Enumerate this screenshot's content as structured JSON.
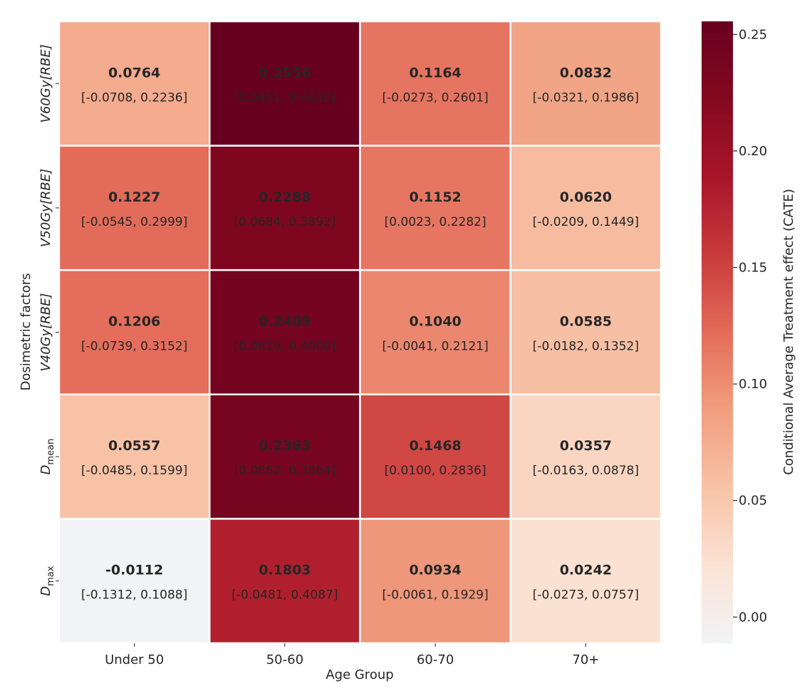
{
  "chart_data": {
    "type": "heatmap",
    "title": "",
    "xlabel": "Age Group",
    "ylabel": "Dosimetric factors",
    "colorbar_label": "Conditional Average Treatment effect (CATE)",
    "x_categories": [
      "Under 50",
      "50-60",
      "60-70",
      "70+"
    ],
    "y_categories": [
      {
        "base": "V60Gy[RBE]",
        "sub": ""
      },
      {
        "base": "V50Gy[RBE]",
        "sub": ""
      },
      {
        "base": "V40Gy[RBE]",
        "sub": ""
      },
      {
        "base": "D",
        "sub": "mean"
      },
      {
        "base": "D",
        "sub": "max"
      }
    ],
    "values": [
      [
        0.0764,
        0.2556,
        0.1164,
        0.0832
      ],
      [
        0.1227,
        0.2288,
        0.1152,
        0.062
      ],
      [
        0.1206,
        0.2409,
        0.104,
        0.0585
      ],
      [
        0.0557,
        0.2363,
        0.1468,
        0.0357
      ],
      [
        -0.0112,
        0.1803,
        0.0934,
        0.0242
      ]
    ],
    "value_labels": [
      [
        "0.0764",
        "0.2556",
        "0.1164",
        "0.0832"
      ],
      [
        "0.1227",
        "0.2288",
        "0.1152",
        "0.0620"
      ],
      [
        "0.1206",
        "0.2409",
        "0.1040",
        "0.0585"
      ],
      [
        "0.0557",
        "0.2363",
        "0.1468",
        "0.0357"
      ],
      [
        "-0.0112",
        "0.1803",
        "0.0934",
        "0.0242"
      ]
    ],
    "ci_labels": [
      [
        "[-0.0708, 0.2236]",
        "[0.0491, 0.4620]",
        "[-0.0273, 0.2601]",
        "[-0.0321, 0.1986]"
      ],
      [
        "[-0.0545, 0.2999]",
        "[0.0684, 0.3892]",
        "[0.0023, 0.2282]",
        "[-0.0209, 0.1449]"
      ],
      [
        "[-0.0739, 0.3152]",
        "[0.0819, 0.4000]",
        "[-0.0041, 0.2121]",
        "[-0.0182, 0.1352]"
      ],
      [
        "[-0.0485, 0.1599]",
        "[0.0862, 0.3864]",
        "[0.0100, 0.2836]",
        "[-0.0163, 0.0878]"
      ],
      [
        "[-0.1312, 0.1088]",
        "[-0.0481, 0.4087]",
        "[-0.0061, 0.1929]",
        "[-0.0273, 0.0757]"
      ]
    ],
    "color_range": [
      -0.0112,
      0.2556
    ],
    "colormap": "RdBu_r-upper-half",
    "colorbar_ticks": [
      {
        "value": 0.0,
        "label": "0.00"
      },
      {
        "value": 0.05,
        "label": "0.05"
      },
      {
        "value": 0.1,
        "label": "0.10"
      },
      {
        "value": 0.15,
        "label": "0.15"
      },
      {
        "value": 0.2,
        "label": "0.20"
      },
      {
        "value": 0.25,
        "label": "0.25"
      }
    ],
    "grid": false,
    "legend": "colorbar-right"
  },
  "colors": {
    "stops": [
      "#f1f3f6",
      "#fbe3d4",
      "#f8c2a7",
      "#f19e7f",
      "#e36c59",
      "#c93a3c",
      "#a81529",
      "#84091f",
      "#67001f"
    ],
    "grid_line": "#ffffff",
    "text": "#262626"
  }
}
